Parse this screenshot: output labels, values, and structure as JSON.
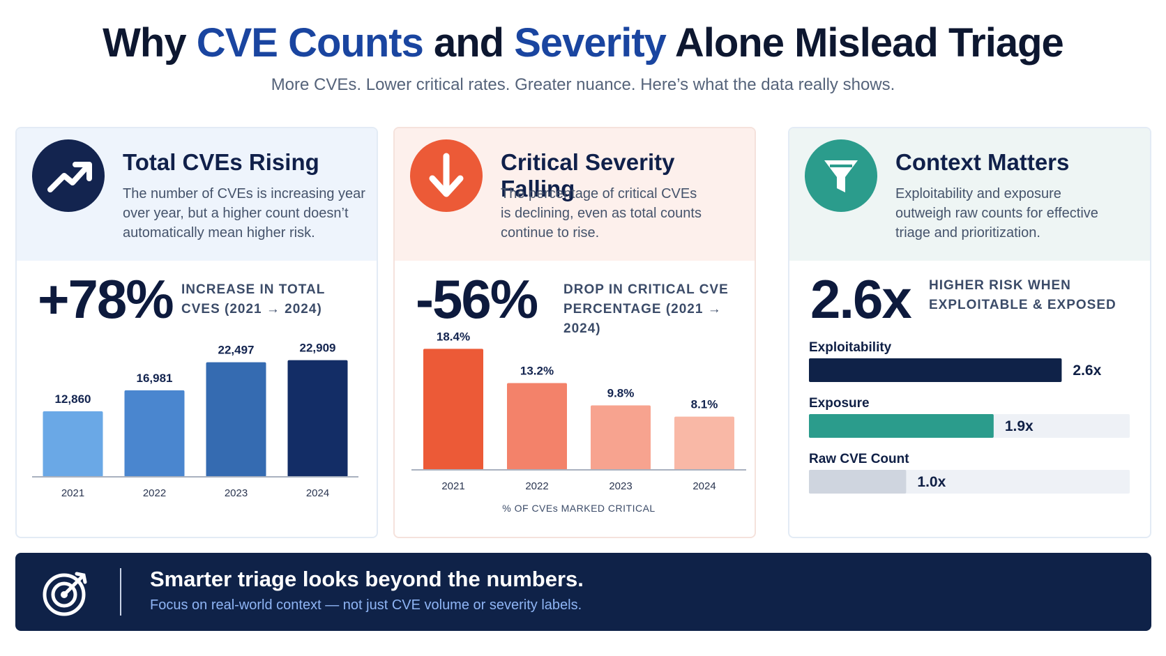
{
  "header": {
    "title_part1": "Why ",
    "title_hl1": "CVE Counts",
    "title_part2": " and ",
    "title_hl2": "Severity",
    "title_part3": " Alone Mislead Triage",
    "subtitle": "More CVEs. Lower critical rates. Greater nuance. Here’s what the data really shows."
  },
  "cards": [
    {
      "icon": "trend-up-icon",
      "title": "Total CVEs Rising",
      "desc": "The number of CVEs is increasing year over year, but a higher count doesn’t automatically mean higher risk.",
      "big": "+78%",
      "label_line1": "Increase in total",
      "label_line2": "CVEs (2021 → 2024)"
    },
    {
      "icon": "arrow-down-icon",
      "title": "Critical Severity Falling",
      "desc": "The percentage of critical CVEs is declining, even as total counts continue to rise.",
      "big": "-56%",
      "label_line1": "Drop in critical CVE",
      "label_line2": "percentage (2021 → 2024)"
    },
    {
      "icon": "funnel-icon",
      "title": "Context Matters",
      "desc": "Exploitability and exposure outweigh raw counts for effective triage and prioritization.",
      "big": "2.6x",
      "label_line1": "Higher risk when",
      "label_line2": "exploitable & exposed"
    }
  ],
  "colors": {
    "navy": "#0f2248",
    "orange": "#ec5a37",
    "teal": "#2b9c8c"
  },
  "chart_data": [
    {
      "type": "bar",
      "categories": [
        "2021",
        "2022",
        "2023",
        "2024"
      ],
      "values": [
        12860,
        16981,
        22497,
        22909
      ],
      "value_labels": [
        "12,860",
        "16,981",
        "22,497",
        "22,909"
      ],
      "colors": [
        "#6aa8e6",
        "#4a86cf",
        "#356bb1",
        "#132d66"
      ],
      "ylim": [
        0,
        26000
      ],
      "xlabel": ""
    },
    {
      "type": "bar",
      "categories": [
        "2021",
        "2022",
        "2023",
        "2024"
      ],
      "values": [
        18.4,
        13.2,
        9.8,
        8.1
      ],
      "value_labels": [
        "18.4%",
        "13.2%",
        "9.8%",
        "8.1%"
      ],
      "colors": [
        "#ec5a37",
        "#f3826a",
        "#f7a38f",
        "#f9b8a6"
      ],
      "ylim": [
        0,
        19.5
      ],
      "xlabel": "% OF CVEs MARKED CRITICAL"
    },
    {
      "type": "bar",
      "orientation": "horizontal",
      "categories": [
        "Exploitability",
        "Exposure",
        "Raw CVE Count"
      ],
      "values": [
        2.6,
        1.9,
        1.0
      ],
      "value_labels": [
        "2.6x",
        "1.9x",
        "1.0x"
      ],
      "colors": [
        "#0f2248",
        "#2b9c8c",
        "#cfd5df"
      ],
      "xlim": [
        0,
        3.3
      ]
    }
  ],
  "banner": {
    "icon": "target-icon",
    "heading": "Smarter triage looks beyond the numbers.",
    "sub": "Focus on real-world context — not just CVE volume or severity labels."
  }
}
